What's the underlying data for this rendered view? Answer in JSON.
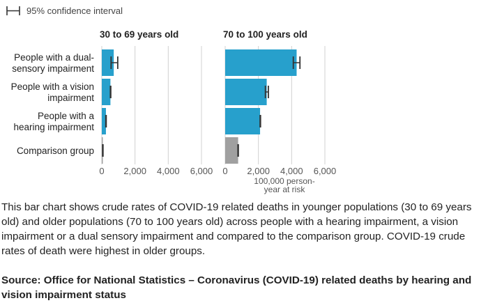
{
  "legend": {
    "ci_label": "95% confidence interval"
  },
  "chart_data": {
    "type": "bar",
    "orientation": "horizontal",
    "categories": [
      [
        "People with a dual-",
        "sensory impairment"
      ],
      [
        "People with a vision",
        "impairment"
      ],
      [
        "People with a",
        "hearing impairment"
      ],
      [
        "Comparison group"
      ]
    ],
    "panels": [
      {
        "title": "30 to 69 years old",
        "values": [
          720,
          520,
          250,
          60
        ],
        "ci": [
          [
            560,
            960
          ],
          [
            460,
            600
          ],
          [
            200,
            310
          ],
          [
            50,
            75
          ]
        ]
      },
      {
        "title": "70 to 100 years old",
        "values": [
          4300,
          2500,
          2100,
          780
        ],
        "ci": [
          [
            4100,
            4500
          ],
          [
            2420,
            2600
          ],
          [
            2050,
            2180
          ],
          [
            740,
            820
          ]
        ]
      }
    ],
    "xlim": [
      0,
      6000
    ],
    "xticks": [
      "0",
      "2,000",
      "4,000",
      "6,000"
    ],
    "xlabel": [
      "100,000 person-",
      "year at risk"
    ],
    "colors": {
      "impairment": "#27a0cc",
      "comparison": "#a0a0a0",
      "error_bar": "#333333",
      "gridline": "#d0d0d0"
    },
    "grid": true
  },
  "description": "This bar chart shows crude rates of COVID-19 related deaths in younger populations (30 to 69 years old) and older populations (70 to 100 years old) across people with a hearing impairment, a vision impairment or a dual sensory impairment and compared to the comparison group. COVID-19 crude rates of death were highest in older groups.",
  "source": "Source: Office for National Statistics – Coronavirus (COVID-19) related deaths by hearing and vision impairment status"
}
